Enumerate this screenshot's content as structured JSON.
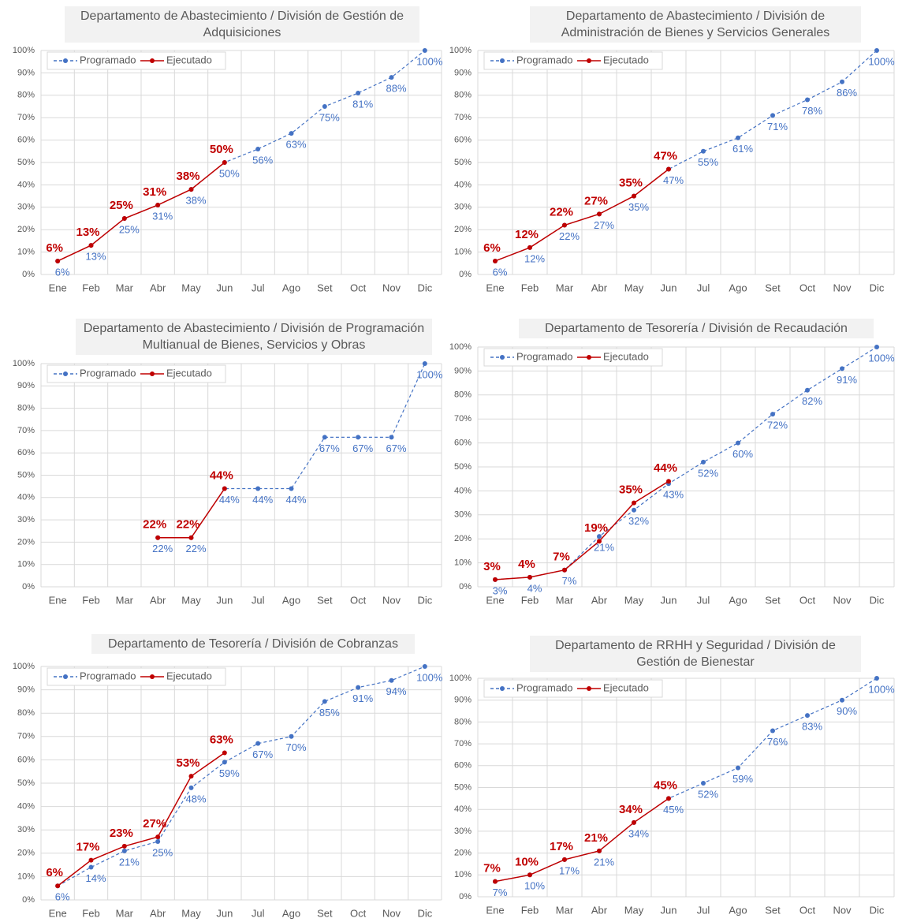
{
  "chart_data": [
    {
      "type": "line",
      "title": "Departamento de Abastecimiento / División de Gestión de Adquisiciones",
      "categories": [
        "Ene",
        "Feb",
        "Mar",
        "Abr",
        "May",
        "Jun",
        "Jul",
        "Ago",
        "Set",
        "Oct",
        "Nov",
        "Dic"
      ],
      "series": [
        {
          "name": "Programado",
          "color": "#4472c4",
          "line_style": "dashed",
          "values": [
            6,
            13,
            25,
            31,
            38,
            50,
            56,
            63,
            75,
            81,
            88,
            100
          ],
          "value_labels": [
            "6%",
            "13%",
            "25%",
            "31%",
            "38%",
            "50%",
            "56%",
            "63%",
            "75%",
            "81%",
            "88%",
            "100%"
          ]
        },
        {
          "name": "Ejecutado",
          "color": "#c00000",
          "line_style": "solid",
          "values": [
            6,
            13,
            25,
            31,
            38,
            50,
            null,
            null,
            null,
            null,
            null,
            null
          ],
          "value_labels": [
            "6%",
            "13%",
            "25%",
            "31%",
            "38%",
            "50%",
            null,
            null,
            null,
            null,
            null,
            null
          ]
        }
      ],
      "ylim": [
        0,
        100
      ],
      "yticks": [
        {
          "value": 0,
          "label": "0%"
        },
        {
          "value": 10,
          "label": "10%"
        },
        {
          "value": 20,
          "label": "20%"
        },
        {
          "value": 30,
          "label": "30%"
        },
        {
          "value": 40,
          "label": "40%"
        },
        {
          "value": 50,
          "label": "50%"
        },
        {
          "value": 60,
          "label": "60%"
        },
        {
          "value": 70,
          "label": "70%"
        },
        {
          "value": 80,
          "label": "80%"
        },
        {
          "value": 90,
          "label": "90%"
        },
        {
          "value": 100,
          "label": "100%"
        }
      ],
      "grid": true,
      "legend": "upper left"
    },
    {
      "type": "line",
      "title": "Departamento de Abastecimiento / División de Administración de Bienes y Servicios Generales",
      "categories": [
        "Ene",
        "Feb",
        "Mar",
        "Abr",
        "May",
        "Jun",
        "Jul",
        "Ago",
        "Set",
        "Oct",
        "Nov",
        "Dic"
      ],
      "series": [
        {
          "name": "Programado",
          "color": "#4472c4",
          "line_style": "dashed",
          "values": [
            6,
            12,
            22,
            27,
            35,
            47,
            55,
            61,
            71,
            78,
            86,
            100
          ],
          "value_labels": [
            "6%",
            "12%",
            "22%",
            "27%",
            "35%",
            "47%",
            "55%",
            "61%",
            "71%",
            "78%",
            "86%",
            "100%"
          ]
        },
        {
          "name": "Ejecutado",
          "color": "#c00000",
          "line_style": "solid",
          "values": [
            6,
            12,
            22,
            27,
            35,
            47,
            null,
            null,
            null,
            null,
            null,
            null
          ],
          "value_labels": [
            "6%",
            "12%",
            "22%",
            "27%",
            "35%",
            "47%",
            null,
            null,
            null,
            null,
            null,
            null
          ]
        }
      ],
      "ylim": [
        0,
        100
      ],
      "yticks": [
        {
          "value": 0,
          "label": "0%"
        },
        {
          "value": 10,
          "label": "10%"
        },
        {
          "value": 20,
          "label": "20%"
        },
        {
          "value": 30,
          "label": "30%"
        },
        {
          "value": 40,
          "label": "40%"
        },
        {
          "value": 50,
          "label": "50%"
        },
        {
          "value": 60,
          "label": "60%"
        },
        {
          "value": 70,
          "label": "70%"
        },
        {
          "value": 80,
          "label": "80%"
        },
        {
          "value": 90,
          "label": "90%"
        },
        {
          "value": 100,
          "label": "100%"
        }
      ],
      "grid": true,
      "legend": "upper left"
    },
    {
      "type": "line",
      "title": "Departamento de Abastecimiento / División de Programación Multianual de Bienes, Servicios y Obras",
      "categories": [
        "Ene",
        "Feb",
        "Mar",
        "Abr",
        "May",
        "Jun",
        "Jul",
        "Ago",
        "Set",
        "Oct",
        "Nov",
        "Dic"
      ],
      "series": [
        {
          "name": "Programado",
          "color": "#4472c4",
          "line_style": "dashed",
          "values": [
            null,
            null,
            null,
            22,
            22,
            44,
            44,
            44,
            67,
            67,
            67,
            100
          ],
          "value_labels": [
            null,
            null,
            null,
            "22%",
            "22%",
            "44%",
            "44%",
            "44%",
            "67%",
            "67%",
            "67%",
            "100%"
          ]
        },
        {
          "name": "Ejecutado",
          "color": "#c00000",
          "line_style": "solid",
          "values": [
            null,
            null,
            null,
            22,
            22,
            44,
            null,
            null,
            null,
            null,
            null,
            null
          ],
          "value_labels": [
            null,
            null,
            null,
            "22%",
            "22%",
            "44%",
            null,
            null,
            null,
            null,
            null,
            null
          ]
        }
      ],
      "ylim": [
        0,
        100
      ],
      "yticks": [
        {
          "value": 0,
          "label": "0%"
        },
        {
          "value": 10,
          "label": "10%"
        },
        {
          "value": 20,
          "label": "20%"
        },
        {
          "value": 30,
          "label": "30%"
        },
        {
          "value": 40,
          "label": "40%"
        },
        {
          "value": 50,
          "label": "50%"
        },
        {
          "value": 60,
          "label": "60%"
        },
        {
          "value": 70,
          "label": "70%"
        },
        {
          "value": 80,
          "label": "80%"
        },
        {
          "value": 90,
          "label": "90%"
        },
        {
          "value": 100,
          "label": "100%"
        }
      ],
      "grid": true,
      "legend": "upper left"
    },
    {
      "type": "line",
      "title": "Departamento de Tesorería / División de Recaudación",
      "categories": [
        "Ene",
        "Feb",
        "Mar",
        "Abr",
        "May",
        "Jun",
        "Jul",
        "Ago",
        "Set",
        "Oct",
        "Nov",
        "Dic"
      ],
      "series": [
        {
          "name": "Programado",
          "color": "#4472c4",
          "line_style": "dashed",
          "values": [
            3,
            4,
            7,
            21,
            32,
            43,
            52,
            60,
            72,
            82,
            91,
            100
          ],
          "value_labels": [
            "3%",
            "4%",
            "7%",
            "21%",
            "32%",
            "43%",
            "52%",
            "60%",
            "72%",
            "82%",
            "91%",
            "100%"
          ]
        },
        {
          "name": "Ejecutado",
          "color": "#c00000",
          "line_style": "solid",
          "values": [
            3,
            4,
            7,
            19,
            35,
            44,
            null,
            null,
            null,
            null,
            null,
            null
          ],
          "value_labels": [
            "3%",
            "4%",
            "7%",
            "19%",
            "35%",
            "44%",
            null,
            null,
            null,
            null,
            null,
            null
          ]
        }
      ],
      "ylim": [
        0,
        100
      ],
      "yticks": [
        {
          "value": 0,
          "label": "0%"
        },
        {
          "value": 10,
          "label": "10%"
        },
        {
          "value": 20,
          "label": "20%"
        },
        {
          "value": 30,
          "label": "30%"
        },
        {
          "value": 40,
          "label": "40%"
        },
        {
          "value": 50,
          "label": "50%"
        },
        {
          "value": 60,
          "label": "60%"
        },
        {
          "value": 70,
          "label": "70%"
        },
        {
          "value": 80,
          "label": "80%"
        },
        {
          "value": 90,
          "label": "90%"
        },
        {
          "value": 100,
          "label": "100%"
        }
      ],
      "grid": true,
      "legend": "upper left"
    },
    {
      "type": "line",
      "title": "Departamento de Tesorería / División de Cobranzas",
      "categories": [
        "Ene",
        "Feb",
        "Mar",
        "Abr",
        "May",
        "Jun",
        "Jul",
        "Ago",
        "Set",
        "Oct",
        "Nov",
        "Dic"
      ],
      "series": [
        {
          "name": "Programado",
          "color": "#4472c4",
          "line_style": "dashed",
          "values": [
            6,
            14,
            21,
            25,
            48,
            59,
            67,
            70,
            85,
            91,
            94,
            100
          ],
          "value_labels": [
            "6%",
            "14%",
            "21%",
            "25%",
            "48%",
            "59%",
            "67%",
            "70%",
            "85%",
            "91%",
            "94%",
            "100%"
          ]
        },
        {
          "name": "Ejecutado",
          "color": "#c00000",
          "line_style": "solid",
          "values": [
            6,
            17,
            23,
            27,
            53,
            63,
            null,
            null,
            null,
            null,
            null,
            null
          ],
          "value_labels": [
            "6%",
            "17%",
            "23%",
            "27%",
            "53%",
            "63%",
            null,
            null,
            null,
            null,
            null,
            null
          ]
        }
      ],
      "ylim": [
        0,
        100
      ],
      "yticks": [
        {
          "value": 0,
          "label": "0%"
        },
        {
          "value": 10,
          "label": "10%"
        },
        {
          "value": 20,
          "label": "20%"
        },
        {
          "value": 30,
          "label": "30%"
        },
        {
          "value": 40,
          "label": "40%"
        },
        {
          "value": 50,
          "label": "50%"
        },
        {
          "value": 60,
          "label": "60%"
        },
        {
          "value": 70,
          "label": "70%"
        },
        {
          "value": 80,
          "label": "80%"
        },
        {
          "value": 90,
          "label": "90%"
        },
        {
          "value": 100,
          "label": "100%"
        }
      ],
      "grid": true,
      "legend": "upper left"
    },
    {
      "type": "line",
      "title": "Departamento de RRHH y Seguridad / División de Gestión de Bienestar",
      "categories": [
        "Ene",
        "Feb",
        "Mar",
        "Abr",
        "May",
        "Jun",
        "Jul",
        "Ago",
        "Set",
        "Oct",
        "Nov",
        "Dic"
      ],
      "series": [
        {
          "name": "Programado",
          "color": "#4472c4",
          "line_style": "dashed",
          "values": [
            7,
            10,
            17,
            21,
            34,
            45,
            52,
            59,
            76,
            83,
            90,
            100
          ],
          "value_labels": [
            "7%",
            "10%",
            "17%",
            "21%",
            "34%",
            "45%",
            "52%",
            "59%",
            "76%",
            "83%",
            "90%",
            "100%"
          ]
        },
        {
          "name": "Ejecutado",
          "color": "#c00000",
          "line_style": "solid",
          "values": [
            7,
            10,
            17,
            21,
            34,
            45,
            null,
            null,
            null,
            null,
            null,
            null
          ],
          "value_labels": [
            "7%",
            "10%",
            "17%",
            "21%",
            "34%",
            "45%",
            null,
            null,
            null,
            null,
            null,
            null
          ]
        }
      ],
      "ylim": [
        0,
        100
      ],
      "yticks": [
        {
          "value": 0,
          "label": "0%"
        },
        {
          "value": 10,
          "label": "10%"
        },
        {
          "value": 20,
          "label": "20%"
        },
        {
          "value": 30,
          "label": "30%"
        },
        {
          "value": 40,
          "label": "40%"
        },
        {
          "value": 50,
          "label": "50%"
        },
        {
          "value": 60,
          "label": "60%"
        },
        {
          "value": 70,
          "label": "70%"
        },
        {
          "value": 80,
          "label": "80%"
        },
        {
          "value": 90,
          "label": "90%"
        },
        {
          "value": 100,
          "label": "100%"
        }
      ],
      "grid": true,
      "legend": "upper left"
    }
  ]
}
